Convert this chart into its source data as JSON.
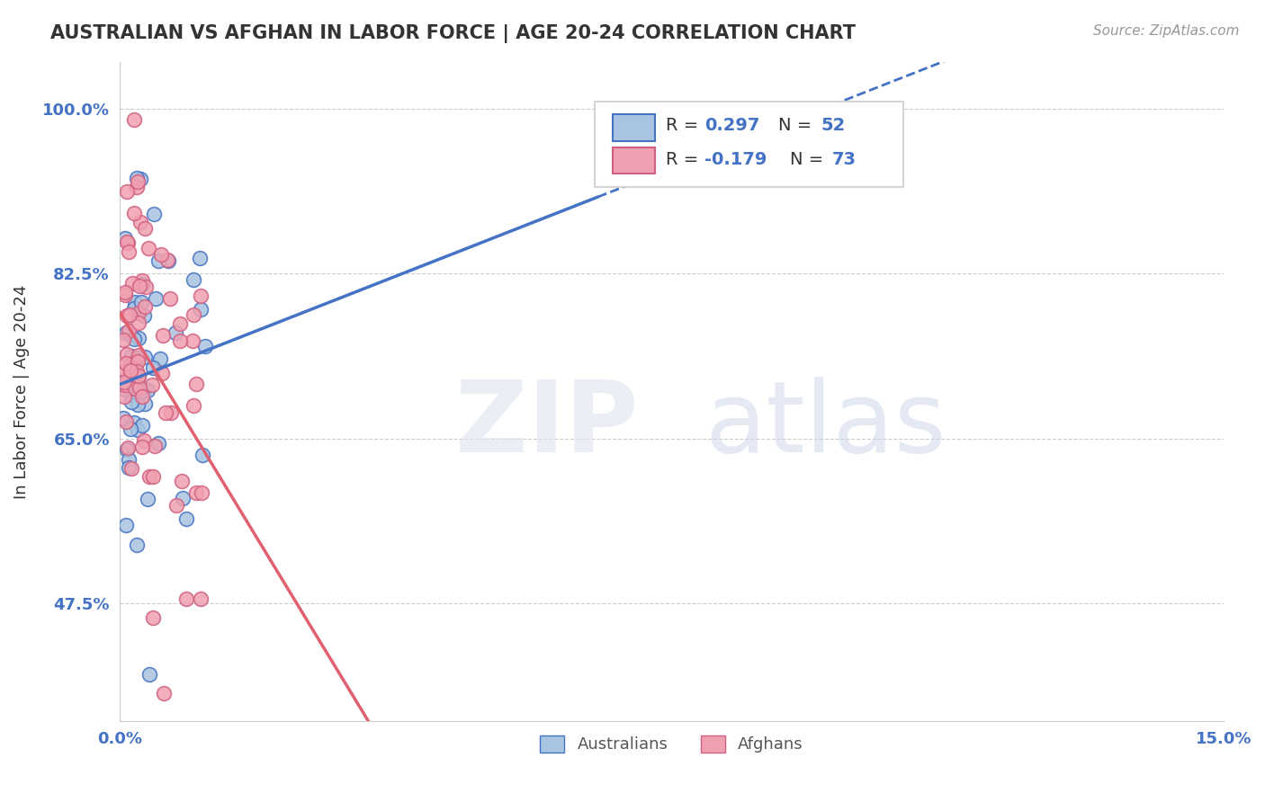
{
  "title": "AUSTRALIAN VS AFGHAN IN LABOR FORCE | AGE 20-24 CORRELATION CHART",
  "source": "Source: ZipAtlas.com",
  "ylabel": "In Labor Force | Age 20-24",
  "xlim": [
    0.0,
    0.15
  ],
  "ylim": [
    0.35,
    1.05
  ],
  "yticks": [
    0.475,
    0.65,
    0.825,
    1.0
  ],
  "ytick_labels": [
    "47.5%",
    "65.0%",
    "82.5%",
    "100.0%"
  ],
  "xticks": [
    0.0,
    0.15
  ],
  "xtick_labels": [
    "0.0%",
    "15.0%"
  ],
  "legend_r_aus": "R = ",
  "legend_r_aus_val": "0.297",
  "legend_n_aus": "N = ",
  "legend_n_aus_val": "52",
  "legend_r_afg": "R = ",
  "legend_r_afg_val": "-0.179",
  "legend_n_afg": "N = ",
  "legend_n_afg_val": "73",
  "color_australian": "#a8c4e0",
  "color_afghan": "#f0a0b0",
  "edge_color_australian": "#4472c4",
  "edge_color_afghan": "#d06080",
  "trendline_color_australian": "#4472c4",
  "trendline_color_afghan": "#e06070",
  "label_australian": "Australians",
  "label_afghan": "Afghans",
  "watermark_zip": "ZIP",
  "watermark_atlas": "atlas"
}
